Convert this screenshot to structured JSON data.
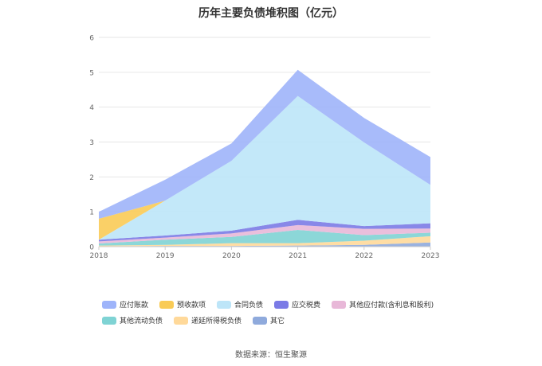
{
  "chart_data": {
    "type": "area",
    "stacked": true,
    "title": "历年主要负债堆积图（亿元）",
    "categories": [
      "2018",
      "2019",
      "2020",
      "2021",
      "2022",
      "2023"
    ],
    "ylim": [
      0,
      6
    ],
    "yticks": [
      "0",
      "1",
      "2",
      "3",
      "4",
      "5",
      "6"
    ],
    "grid": true,
    "legend_position": "bottom",
    "series": [
      {
        "name": "其它",
        "color": "#8FAADC",
        "values": [
          0.01,
          0.02,
          0.02,
          0.03,
          0.05,
          0.12
        ]
      },
      {
        "name": "递延所得税负债",
        "color": "#FFD99A",
        "values": [
          0.02,
          0.03,
          0.08,
          0.07,
          0.12,
          0.18
        ]
      },
      {
        "name": "其他流动负债",
        "color": "#7FD3D4",
        "values": [
          0.06,
          0.15,
          0.18,
          0.38,
          0.16,
          0.1
        ]
      },
      {
        "name": "其他应付款(含利息和股利)",
        "color": "#E8B8D8",
        "values": [
          0.06,
          0.06,
          0.1,
          0.14,
          0.18,
          0.12
        ]
      },
      {
        "name": "应交税费",
        "color": "#7B7BE6",
        "values": [
          0.05,
          0.06,
          0.08,
          0.15,
          0.08,
          0.15
        ]
      },
      {
        "name": "合同负债",
        "color": "#BDE5F8",
        "values": [
          0.0,
          1.0,
          2.0,
          3.55,
          2.4,
          1.1
        ]
      },
      {
        "name": "预收款项",
        "color": "#F9CB56",
        "values": [
          0.6,
          0.0,
          0.0,
          0.0,
          0.0,
          0.0
        ]
      },
      {
        "name": "应付账款",
        "color": "#9EB4FA",
        "values": [
          0.2,
          0.6,
          0.5,
          0.75,
          0.7,
          0.8
        ]
      }
    ],
    "legend_order": [
      "应付账款",
      "预收款项",
      "合同负债",
      "应交税费",
      "其他应付款(含利息和股利)",
      "其他流动负债",
      "递延所得税负债",
      "其它"
    ],
    "source": "数据来源：恒生聚源"
  }
}
